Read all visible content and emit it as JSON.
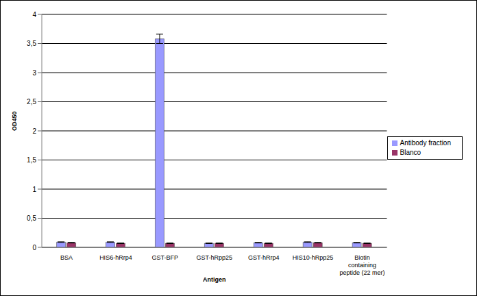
{
  "chart_data": {
    "type": "bar",
    "x_label": "Antigen",
    "y_label": "OD450",
    "categories": [
      "BSA",
      "HIS6-hRrp4",
      "GST-BFP",
      "GST-hRpp25",
      "GST-hRrp4",
      "HIS10-hRpp25",
      "Biotin containing peptide (22 mer)"
    ],
    "series": [
      {
        "name": "Antibody fraction",
        "color": "#9999ff",
        "values": [
          0.09,
          0.09,
          3.58,
          0.07,
          0.08,
          0.09,
          0.08
        ],
        "errors": [
          0.005,
          0.005,
          0.08,
          0.005,
          0.005,
          0.005,
          0.005
        ]
      },
      {
        "name": "Blanco",
        "color": "#993366",
        "values": [
          0.08,
          0.07,
          0.07,
          0.07,
          0.07,
          0.08,
          0.07
        ],
        "errors": [
          0.005,
          0.005,
          0.005,
          0.005,
          0.005,
          0.005,
          0.005
        ]
      }
    ],
    "ylim": [
      0,
      4
    ],
    "yticks": [
      0,
      {
        "value": 0.5,
        "label": "0,5"
      },
      1,
      {
        "value": 1.5,
        "label": "1,5"
      },
      2,
      {
        "value": 2.5,
        "label": "2,5"
      },
      3,
      {
        "value": 3.5,
        "label": "3,5"
      },
      4
    ],
    "grid": true,
    "legend": "right"
  }
}
